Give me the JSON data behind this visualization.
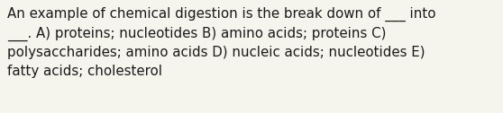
{
  "text": "An example of chemical digestion is the break down of ___ into\n___. A) proteins; nucleotides B) amino acids; proteins C)\npolysaccharides; amino acids D) nucleic acids; nucleotides E)\nfatty acids; cholesterol",
  "background_color": "#f5f5ee",
  "text_color": "#1a1a1a",
  "font_size": 10.8,
  "figwidth": 5.58,
  "figheight": 1.26,
  "dpi": 100
}
